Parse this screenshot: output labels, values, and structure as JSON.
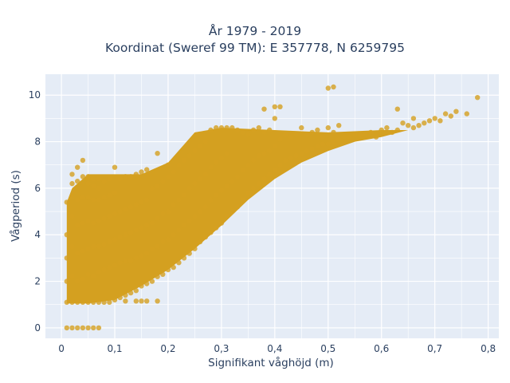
{
  "title": {
    "line1": "År 1979 - 2019",
    "line2": "Koordinat (Sweref 99 TM): E 357778, N 6259795"
  },
  "colors": {
    "plot_bg": "#e5ecf6",
    "grid": "#ffffff",
    "marker": "#d4a020",
    "text": "#2a3f5f"
  },
  "chart_data": {
    "type": "scatter",
    "title": "År 1979 - 2019 / Koordinat (Sweref 99 TM): E 357778, N 6259795",
    "xlabel": "Signifikant våghöjd (m)",
    "ylabel": "Vågperiod (s)",
    "xlim": [
      -0.03,
      0.82
    ],
    "ylim": [
      -0.45,
      10.9
    ],
    "x_ticks": [
      0,
      0.1,
      0.2,
      0.3,
      0.4,
      0.5,
      0.6,
      0.7,
      0.8
    ],
    "x_tick_labels": [
      "0",
      "0,1",
      "0,2",
      "0,3",
      "0,4",
      "0,5",
      "0,6",
      "0,7",
      "0,8"
    ],
    "y_ticks": [
      0,
      2,
      4,
      6,
      8,
      10
    ],
    "y_tick_labels": [
      "0",
      "2",
      "4",
      "6",
      "8",
      "10"
    ],
    "grid": true,
    "series": [
      {
        "x": [
          0.01,
          0.02,
          0.03,
          0.04,
          0.05,
          0.06,
          0.07,
          0.01,
          0.01,
          0.01,
          0.01,
          0.01,
          0.02,
          0.02,
          0.02,
          0.02,
          0.02,
          0.02,
          0.02,
          0.03,
          0.03,
          0.03,
          0.03,
          0.03,
          0.03,
          0.03,
          0.04,
          0.04,
          0.04,
          0.04,
          0.04,
          0.04,
          0.04,
          0.05,
          0.05,
          0.05,
          0.05,
          0.05,
          0.05,
          0.05,
          0.06,
          0.06,
          0.06,
          0.06,
          0.06,
          0.06,
          0.06,
          0.07,
          0.07,
          0.07,
          0.07,
          0.07,
          0.07,
          0.07,
          0.08,
          0.08,
          0.08,
          0.08,
          0.08,
          0.08,
          0.09,
          0.09,
          0.09,
          0.09,
          0.09,
          0.09,
          0.1,
          0.1,
          0.1,
          0.1,
          0.1,
          0.1,
          0.11,
          0.11,
          0.11,
          0.11,
          0.11,
          0.12,
          0.12,
          0.12,
          0.12,
          0.12,
          0.13,
          0.13,
          0.13,
          0.13,
          0.13,
          0.14,
          0.14,
          0.14,
          0.14,
          0.14,
          0.15,
          0.15,
          0.15,
          0.15,
          0.15,
          0.16,
          0.16,
          0.16,
          0.16,
          0.16,
          0.17,
          0.17,
          0.17,
          0.17,
          0.18,
          0.18,
          0.18,
          0.18,
          0.18,
          0.19,
          0.19,
          0.19,
          0.19,
          0.2,
          0.2,
          0.2,
          0.2,
          0.2,
          0.21,
          0.21,
          0.21,
          0.21,
          0.22,
          0.22,
          0.22,
          0.22,
          0.23,
          0.23,
          0.23,
          0.23,
          0.24,
          0.24,
          0.24,
          0.24,
          0.25,
          0.25,
          0.25,
          0.25,
          0.26,
          0.26,
          0.26,
          0.26,
          0.27,
          0.27,
          0.27,
          0.27,
          0.28,
          0.28,
          0.28,
          0.28,
          0.29,
          0.29,
          0.29,
          0.29,
          0.3,
          0.3,
          0.3,
          0.3,
          0.31,
          0.31,
          0.31,
          0.31,
          0.32,
          0.32,
          0.32,
          0.33,
          0.33,
          0.33,
          0.34,
          0.34,
          0.34,
          0.35,
          0.35,
          0.35,
          0.36,
          0.36,
          0.36,
          0.37,
          0.37,
          0.37,
          0.38,
          0.38,
          0.38,
          0.39,
          0.39,
          0.39,
          0.4,
          0.4,
          0.4,
          0.41,
          0.41,
          0.42,
          0.42,
          0.43,
          0.43,
          0.44,
          0.44,
          0.45,
          0.45,
          0.46,
          0.46,
          0.47,
          0.47,
          0.48,
          0.48,
          0.49,
          0.49,
          0.5,
          0.5,
          0.51,
          0.51,
          0.52,
          0.52,
          0.53,
          0.54,
          0.55,
          0.56,
          0.57,
          0.58,
          0.59,
          0.6,
          0.61,
          0.62,
          0.63,
          0.64,
          0.65,
          0.66,
          0.67,
          0.68,
          0.69,
          0.7,
          0.71,
          0.72,
          0.73,
          0.74,
          0.76,
          0.78,
          0.4,
          0.41,
          0.5,
          0.51,
          0.38,
          0.63,
          0.66,
          0.12,
          0.14,
          0.15,
          0.16,
          0.18
        ],
        "y": [
          0,
          0,
          0,
          0,
          0,
          0,
          0,
          1.1,
          2.0,
          3.0,
          4.0,
          5.4,
          1.1,
          2.2,
          3.5,
          4.8,
          5.6,
          6.2,
          6.6,
          1.1,
          2.0,
          3.2,
          4.4,
          5.5,
          6.3,
          6.9,
          1.1,
          2.1,
          3.3,
          4.5,
          5.6,
          6.5,
          7.2,
          1.1,
          2.3,
          3.4,
          4.6,
          5.6,
          6.2,
          6.5,
          1.1,
          2.2,
          3.5,
          4.5,
          5.5,
          6.1,
          6.4,
          1.1,
          2.4,
          3.5,
          4.6,
          5.5,
          6.0,
          6.4,
          1.1,
          2.5,
          3.6,
          4.7,
          5.6,
          6.3,
          1.1,
          2.6,
          3.7,
          4.8,
          5.7,
          6.4,
          1.2,
          2.7,
          3.8,
          4.9,
          5.8,
          6.9,
          1.3,
          2.8,
          3.9,
          5.0,
          6.4,
          1.4,
          2.9,
          4.0,
          5.1,
          6.5,
          1.5,
          2.9,
          4.1,
          5.2,
          6.5,
          1.6,
          3.0,
          4.2,
          5.3,
          6.6,
          1.8,
          3.1,
          4.3,
          5.4,
          6.7,
          1.9,
          3.2,
          4.4,
          5.5,
          6.8,
          2.0,
          3.4,
          4.5,
          6.0,
          2.2,
          3.5,
          4.7,
          6.1,
          7.5,
          2.3,
          3.7,
          4.9,
          6.3,
          2.5,
          3.8,
          5.0,
          6.5,
          7.0,
          2.6,
          4.0,
          5.3,
          6.7,
          2.8,
          4.2,
          5.5,
          7.0,
          3.0,
          4.4,
          5.7,
          7.2,
          3.2,
          4.6,
          6.0,
          7.4,
          3.4,
          4.8,
          6.2,
          7.6,
          3.7,
          5.0,
          6.4,
          7.8,
          3.9,
          5.2,
          6.6,
          8.0,
          4.1,
          5.5,
          6.9,
          8.5,
          4.3,
          5.7,
          7.1,
          8.6,
          4.5,
          5.9,
          7.3,
          8.6,
          4.8,
          6.1,
          7.5,
          8.6,
          5.0,
          6.3,
          8.6,
          5.2,
          6.5,
          8.5,
          5.5,
          6.8,
          8.4,
          5.8,
          7.0,
          8.3,
          6.0,
          7.2,
          8.5,
          6.2,
          7.4,
          8.6,
          6.4,
          7.5,
          8.4,
          6.6,
          7.6,
          8.5,
          6.8,
          7.8,
          9.0,
          7.0,
          8.1,
          7.2,
          8.3,
          7.3,
          8.2,
          7.4,
          8.3,
          7.5,
          8.6,
          7.6,
          8.3,
          7.7,
          8.4,
          7.8,
          8.5,
          7.9,
          8.2,
          7.9,
          8.6,
          8.0,
          8.4,
          8.1,
          8.7,
          8.2,
          8.2,
          8.3,
          8.3,
          8.3,
          8.4,
          8.2,
          8.5,
          8.6,
          8.4,
          8.5,
          8.8,
          8.7,
          8.6,
          8.7,
          8.8,
          8.9,
          9.0,
          8.9,
          9.2,
          9.1,
          9.3,
          9.2,
          9.9,
          9.5,
          9.5,
          10.3,
          10.35,
          9.4,
          9.4,
          9.0,
          1.15,
          1.15,
          1.15,
          1.15,
          1.15
        ]
      }
    ]
  }
}
